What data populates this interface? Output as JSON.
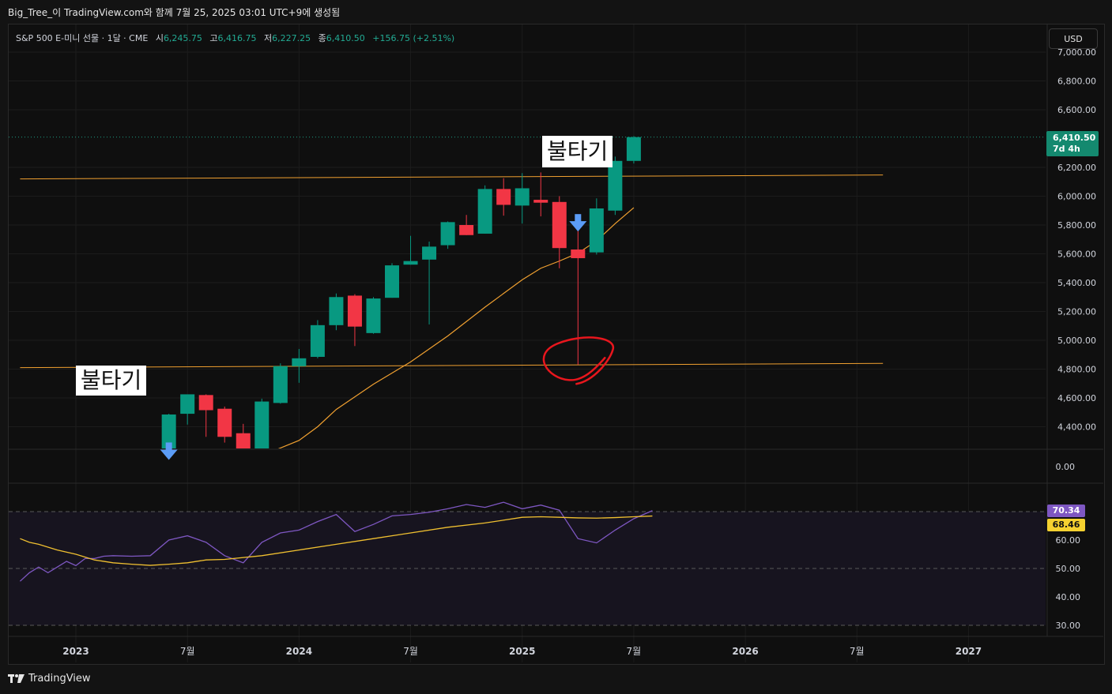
{
  "header": {
    "caption": "Big_Tree_이 TradingView.com와 함께 7월 25, 2025 03:01 UTC+9에 생성됨"
  },
  "legend": {
    "symbol": "S&P 500 E-미니 선물 · 1달 · CME",
    "open_label": "시",
    "open": "6,245.75",
    "high_label": "고",
    "high": "6,416.75",
    "low_label": "저",
    "low": "6,227.25",
    "close_label": "종",
    "close": "6,410.50",
    "change": "+156.75 (+2.51%)"
  },
  "currency_button": "USD",
  "price_tag": {
    "price": "6,410.50",
    "countdown": "7d 4h"
  },
  "annotations": {
    "left_text": "불타기",
    "right_text": "불타기"
  },
  "rsi_tags": {
    "rsi": "70.34",
    "rsi_ma": "68.46"
  },
  "footer": {
    "brand": "TradingView"
  },
  "colors": {
    "up": "#089981",
    "down": "#f23645",
    "ma": "#f0a030",
    "rsi": "#7e57c2",
    "rsi_ma": "#f0c030",
    "hline": "#f0a030",
    "marker": "#e8161d",
    "arrow": "#5b9cf6"
  },
  "chart_data": [
    {
      "type": "candlestick",
      "title": "S&P 500 E-미니 선물 · 1달 · CME",
      "ylim": [
        4190,
        7030
      ],
      "yticks": [
        4400,
        4600,
        4800,
        5000,
        5200,
        5400,
        5600,
        5800,
        6000,
        6200,
        6600,
        6800,
        7000
      ],
      "ytick_labels": [
        "4,400.00",
        "4,600.00",
        "4,800.00",
        "5,000.00",
        "5,200.00",
        "5,400.00",
        "5,600.00",
        "5,800.00",
        "6,000.00",
        "6,200.00",
        "6,600.00",
        "6,800.00",
        "7,000.00"
      ],
      "x_labels": [
        "2023",
        "7월",
        "2024",
        "7월",
        "2025",
        "7월",
        "2026",
        "7월",
        "2027"
      ],
      "x_label_months": [
        0,
        6,
        12,
        18,
        24,
        30,
        36,
        42,
        48
      ],
      "candles": [
        {
          "m": 5,
          "o": 4190,
          "h": 4490,
          "l": 4190,
          "c": 4485
        },
        {
          "m": 6,
          "o": 4490,
          "h": 4620,
          "l": 4415,
          "c": 4625
        },
        {
          "m": 7,
          "o": 4620,
          "h": 4625,
          "l": 4330,
          "c": 4515
        },
        {
          "m": 8,
          "o": 4525,
          "h": 4540,
          "l": 4290,
          "c": 4330
        },
        {
          "m": 9,
          "o": 4355,
          "h": 4420,
          "l": 4190,
          "c": 4190
        },
        {
          "m": 10,
          "o": 4190,
          "h": 4595,
          "l": 4190,
          "c": 4575
        },
        {
          "m": 11,
          "o": 4565,
          "h": 4840,
          "l": 4560,
          "c": 4820
        },
        {
          "m": 12,
          "o": 4820,
          "h": 4940,
          "l": 4705,
          "c": 4875
        },
        {
          "m": 13,
          "o": 4885,
          "h": 5140,
          "l": 4875,
          "c": 5105
        },
        {
          "m": 14,
          "o": 5105,
          "h": 5325,
          "l": 5070,
          "c": 5300
        },
        {
          "m": 15,
          "o": 5310,
          "h": 5320,
          "l": 4960,
          "c": 5095
        },
        {
          "m": 16,
          "o": 5050,
          "h": 5300,
          "l": 5045,
          "c": 5290
        },
        {
          "m": 17,
          "o": 5295,
          "h": 5535,
          "l": 5295,
          "c": 5520
        },
        {
          "m": 18,
          "o": 5525,
          "h": 5725,
          "l": 5525,
          "c": 5550
        },
        {
          "m": 19,
          "o": 5560,
          "h": 5685,
          "l": 5110,
          "c": 5650
        },
        {
          "m": 20,
          "o": 5660,
          "h": 5825,
          "l": 5635,
          "c": 5820
        },
        {
          "m": 21,
          "o": 5800,
          "h": 5870,
          "l": 5730,
          "c": 5730
        },
        {
          "m": 22,
          "o": 5740,
          "h": 6075,
          "l": 5740,
          "c": 6050
        },
        {
          "m": 23,
          "o": 6050,
          "h": 6125,
          "l": 5865,
          "c": 5940
        },
        {
          "m": 24,
          "o": 5935,
          "h": 6160,
          "l": 5810,
          "c": 6055
        },
        {
          "m": 25,
          "o": 5975,
          "h": 6165,
          "l": 5860,
          "c": 5955
        },
        {
          "m": 26,
          "o": 5960,
          "h": 6000,
          "l": 5500,
          "c": 5640
        },
        {
          "m": 27,
          "o": 5630,
          "h": 5780,
          "l": 4830,
          "c": 5570
        },
        {
          "m": 28,
          "o": 5610,
          "h": 5985,
          "l": 5595,
          "c": 5915
        },
        {
          "m": 29,
          "o": 5900,
          "h": 6275,
          "l": 5870,
          "c": 6245
        },
        {
          "m": 30,
          "o": 6245,
          "h": 6417,
          "l": 6227,
          "c": 6410
        }
      ],
      "ma": [
        {
          "m": 10,
          "v": 4200
        },
        {
          "m": 12,
          "v": 4305
        },
        {
          "m": 13,
          "v": 4400
        },
        {
          "m": 14,
          "v": 4520
        },
        {
          "m": 16,
          "v": 4695
        },
        {
          "m": 18,
          "v": 4850
        },
        {
          "m": 20,
          "v": 5030
        },
        {
          "m": 22,
          "v": 5230
        },
        {
          "m": 24,
          "v": 5420
        },
        {
          "m": 25,
          "v": 5500
        },
        {
          "m": 26,
          "v": 5550
        },
        {
          "m": 27,
          "v": 5605
        },
        {
          "m": 28,
          "v": 5690
        },
        {
          "m": 29,
          "v": 5810
        },
        {
          "m": 30,
          "v": 5920
        }
      ],
      "hlines": [
        {
          "label": "resistance",
          "m0": -3,
          "v0": 6120,
          "m1": 43.4,
          "v1": 6147
        },
        {
          "label": "support",
          "m0": -3,
          "v0": 4810,
          "m1": 43.4,
          "v1": 4840
        }
      ],
      "last_price": 6410.5,
      "arrows": [
        {
          "m": 5,
          "v": 4225
        },
        {
          "m": 27,
          "v": 5810
        }
      ],
      "circle": {
        "m": 27,
        "v": 4900
      }
    },
    {
      "type": "line",
      "title": "RSI",
      "ylim": [
        28,
        73
      ],
      "yticks": [
        30,
        40,
        50,
        60
      ],
      "ytick_labels": [
        "30.00",
        "40.00",
        "50.00",
        "60.00"
      ],
      "bands": [
        30,
        50,
        70
      ],
      "upper_tick": "0.00",
      "series": [
        {
          "key": "rsi",
          "points": [
            {
              "m": -3,
              "v": 45.5
            },
            {
              "m": -2.5,
              "v": 48.5
            },
            {
              "m": -2,
              "v": 50.5
            },
            {
              "m": -1.5,
              "v": 48.5
            },
            {
              "m": -1,
              "v": 50.5
            },
            {
              "m": -0.5,
              "v": 52.5
            },
            {
              "m": 0,
              "v": 51
            },
            {
              "m": 0.5,
              "v": 53.5
            },
            {
              "m": 1,
              "v": 53.5
            },
            {
              "m": 1.5,
              "v": 54.3
            },
            {
              "m": 2,
              "v": 54.5
            },
            {
              "m": 3,
              "v": 54.3
            },
            {
              "m": 4,
              "v": 54.5
            },
            {
              "m": 5,
              "v": 60
            },
            {
              "m": 6,
              "v": 61.5
            },
            {
              "m": 7,
              "v": 59.2
            },
            {
              "m": 8,
              "v": 54.5
            },
            {
              "m": 9,
              "v": 52
            },
            {
              "m": 10,
              "v": 59.2
            },
            {
              "m": 11,
              "v": 62.5
            },
            {
              "m": 12,
              "v": 63.5
            },
            {
              "m": 13,
              "v": 66.5
            },
            {
              "m": 14,
              "v": 69
            },
            {
              "m": 15,
              "v": 63
            },
            {
              "m": 16,
              "v": 65.5
            },
            {
              "m": 17,
              "v": 68.5
            },
            {
              "m": 18,
              "v": 69
            },
            {
              "m": 19,
              "v": 69.8
            },
            {
              "m": 20,
              "v": 71
            },
            {
              "m": 21,
              "v": 72.5
            },
            {
              "m": 22,
              "v": 71.5
            },
            {
              "m": 23,
              "v": 73.3
            },
            {
              "m": 24,
              "v": 71
            },
            {
              "m": 25,
              "v": 72.3
            },
            {
              "m": 26,
              "v": 70.5
            },
            {
              "m": 27,
              "v": 60.5
            },
            {
              "m": 28,
              "v": 59
            },
            {
              "m": 29,
              "v": 63.5
            },
            {
              "m": 30,
              "v": 67.5
            },
            {
              "m": 31,
              "v": 70.34
            }
          ]
        },
        {
          "key": "rsi_ma",
          "points": [
            {
              "m": -3,
              "v": 60.5
            },
            {
              "m": -2.5,
              "v": 59.2
            },
            {
              "m": -2,
              "v": 58.5
            },
            {
              "m": -1,
              "v": 56.5
            },
            {
              "m": 0,
              "v": 55
            },
            {
              "m": 1,
              "v": 53
            },
            {
              "m": 2,
              "v": 52
            },
            {
              "m": 3,
              "v": 51.5
            },
            {
              "m": 4,
              "v": 51.1
            },
            {
              "m": 5,
              "v": 51.5
            },
            {
              "m": 6,
              "v": 52
            },
            {
              "m": 7,
              "v": 53
            },
            {
              "m": 8,
              "v": 53.2
            },
            {
              "m": 10,
              "v": 54.5
            },
            {
              "m": 12,
              "v": 56.5
            },
            {
              "m": 14,
              "v": 58.5
            },
            {
              "m": 16,
              "v": 60.5
            },
            {
              "m": 18,
              "v": 62.5
            },
            {
              "m": 20,
              "v": 64.5
            },
            {
              "m": 22,
              "v": 66
            },
            {
              "m": 24,
              "v": 68
            },
            {
              "m": 25,
              "v": 68.2
            },
            {
              "m": 26,
              "v": 68
            },
            {
              "m": 27,
              "v": 67.8
            },
            {
              "m": 28,
              "v": 67.7
            },
            {
              "m": 29,
              "v": 67.9
            },
            {
              "m": 30,
              "v": 68.2
            },
            {
              "m": 31,
              "v": 68.46
            }
          ]
        }
      ]
    }
  ]
}
